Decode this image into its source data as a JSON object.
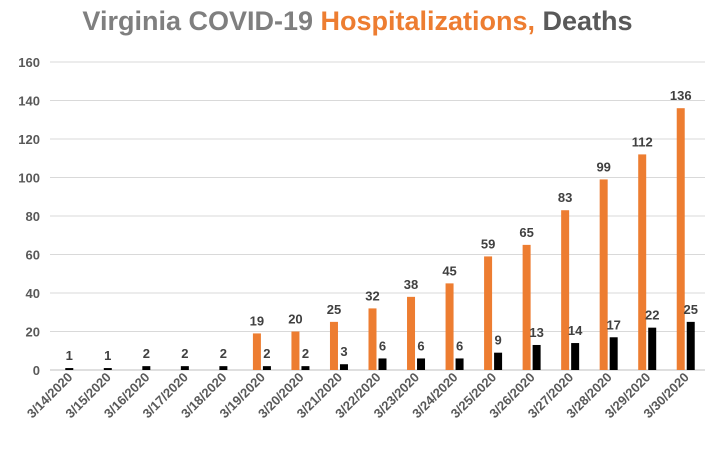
{
  "title_parts": [
    {
      "text": "Virginia COVID-19 ",
      "color": "#7f7f7f"
    },
    {
      "text": "Hospitalizations,",
      "color": "#ed7d31"
    },
    {
      "text": " Deaths",
      "color": "#595959"
    }
  ],
  "chart_data": {
    "type": "bar",
    "title": "Virginia COVID-19 Hospitalizations, Deaths",
    "categories": [
      "3/14/2020",
      "3/15/2020",
      "3/16/2020",
      "3/17/2020",
      "3/18/2020",
      "3/19/2020",
      "3/20/2020",
      "3/21/2020",
      "3/22/2020",
      "3/23/2020",
      "3/24/2020",
      "3/25/2020",
      "3/26/2020",
      "3/27/2020",
      "3/28/2020",
      "3/29/2020",
      "3/30/2020"
    ],
    "series": [
      {
        "name": "Hospitalizations",
        "color": "#ed7d31",
        "values": [
          null,
          null,
          null,
          null,
          null,
          19,
          20,
          25,
          32,
          38,
          45,
          59,
          65,
          83,
          99,
          112,
          136
        ]
      },
      {
        "name": "Deaths",
        "color": "#000000",
        "values": [
          1,
          1,
          2,
          2,
          2,
          2,
          2,
          3,
          6,
          6,
          6,
          9,
          13,
          14,
          17,
          22,
          25
        ]
      }
    ],
    "ylim": [
      0,
      160
    ],
    "yticks": [
      0,
      20,
      40,
      60,
      80,
      100,
      120,
      140,
      160
    ],
    "grid": "horizontal",
    "legend": "none",
    "xlabel": "",
    "ylabel": ""
  }
}
